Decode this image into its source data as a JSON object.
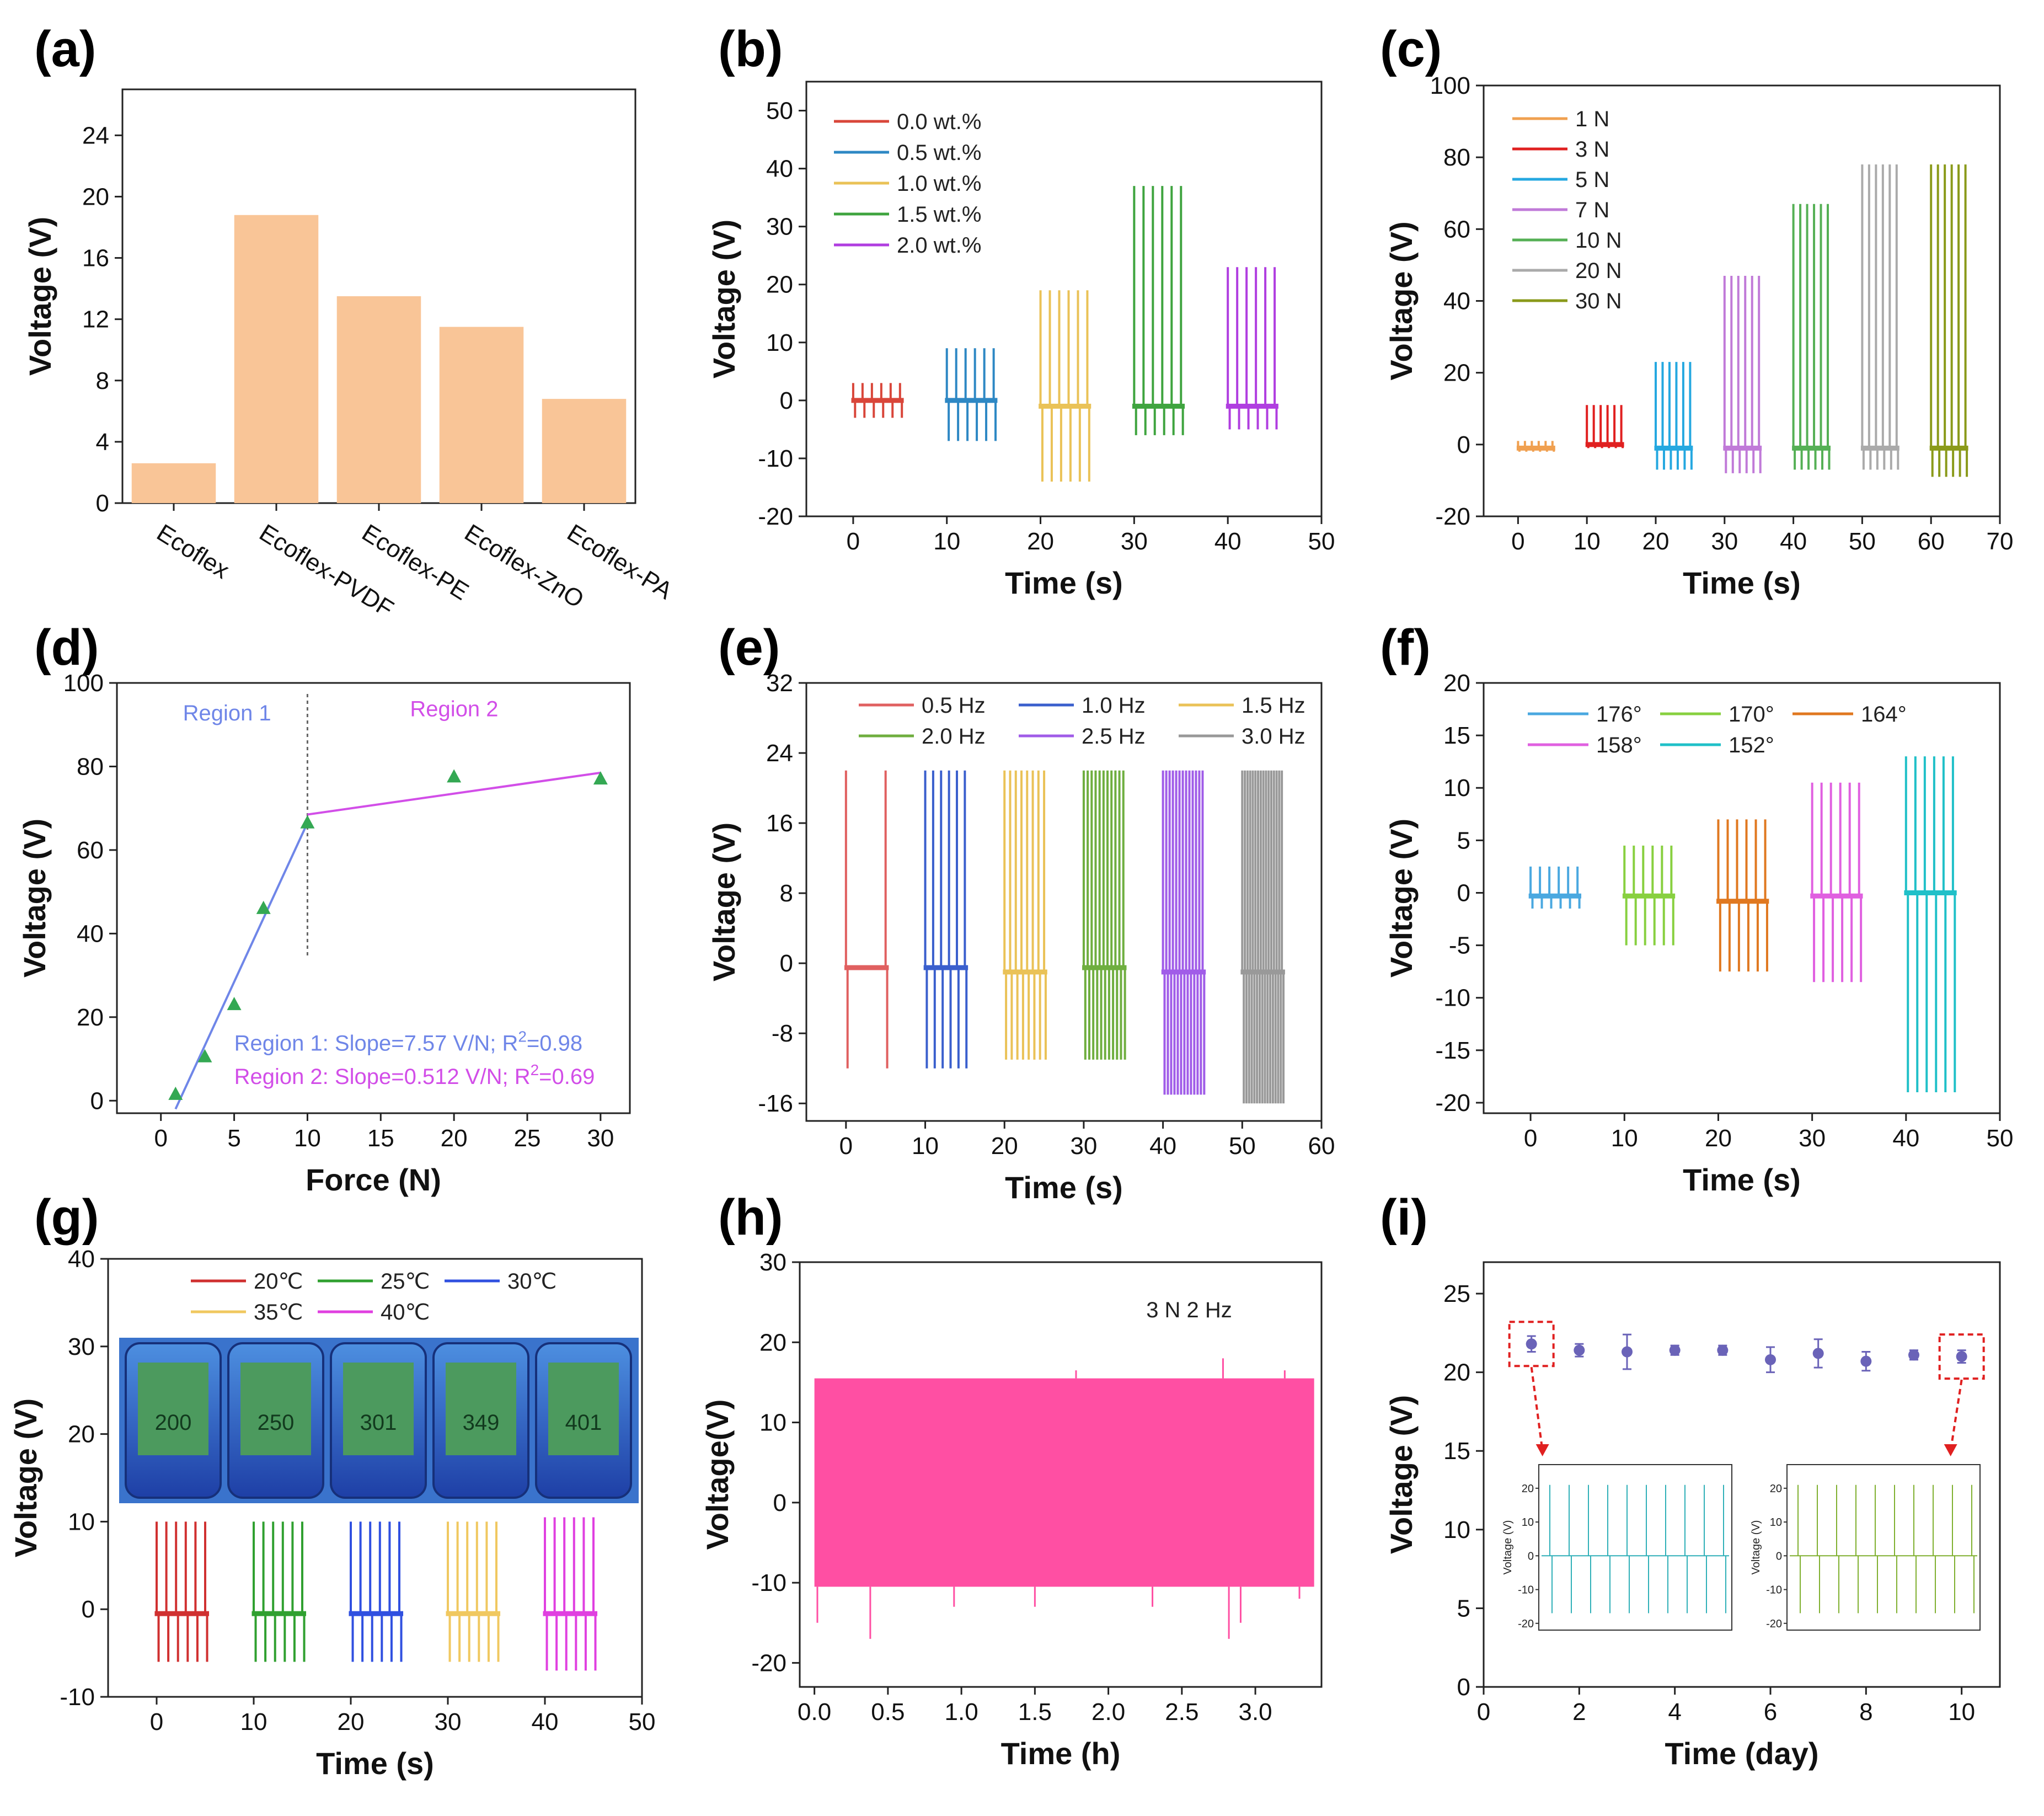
{
  "colors": {
    "bar_fill": "#f9c597",
    "pink_fill": "#ff4fa3",
    "stability_marker": "#6a63b8",
    "callout": "#e02020",
    "region1": "#6f86e8",
    "region2": "#d24ee8",
    "point": "#34a853"
  },
  "chart_data": [
    {
      "panel": "(a)",
      "type": "bar",
      "categories": [
        "Ecoflex",
        "Ecoflex-PVDF",
        "Ecoflex-PE",
        "Ecoflex-ZnO",
        "Ecoflex-PA"
      ],
      "values": [
        2.6,
        18.8,
        13.5,
        11.5,
        6.8
      ],
      "ylabel": "Voltage (V)",
      "xlabel": "",
      "ylim": [
        0,
        27
      ],
      "yticks": [
        0,
        4,
        8,
        12,
        16,
        20,
        24
      ]
    },
    {
      "panel": "(b)",
      "type": "line",
      "xlabel": "Time (s)",
      "ylabel": "Voltage (V)",
      "xlim": [
        -5,
        50
      ],
      "ylim": [
        -20,
        55
      ],
      "xticks": [
        0,
        10,
        20,
        30,
        40,
        50
      ],
      "yticks": [
        -20,
        -10,
        0,
        10,
        20,
        30,
        40,
        50
      ],
      "series": [
        {
          "name": "0.0 wt.%",
          "color": "#d9463a",
          "start": 0,
          "end": 5,
          "pulses": 6,
          "max": 3,
          "min": -3,
          "base": 0
        },
        {
          "name": "0.5 wt.%",
          "color": "#2e88c4",
          "start": 10,
          "end": 15,
          "pulses": 6,
          "max": 9,
          "min": -7,
          "base": 0
        },
        {
          "name": "1.0 wt.%",
          "color": "#eac257",
          "start": 20,
          "end": 25,
          "pulses": 6,
          "max": 19,
          "min": -14,
          "base": -1
        },
        {
          "name": "1.5 wt.%",
          "color": "#3fa43f",
          "start": 30,
          "end": 35,
          "pulses": 6,
          "max": 37,
          "min": -6,
          "base": -1
        },
        {
          "name": "2.0 wt.%",
          "color": "#b03ee0",
          "start": 40,
          "end": 45,
          "pulses": 6,
          "max": 23,
          "min": -5,
          "base": -1
        }
      ]
    },
    {
      "panel": "(c)",
      "type": "line",
      "xlabel": "Time (s)",
      "ylabel": "Voltage (V)",
      "xlim": [
        -5,
        70
      ],
      "ylim": [
        -20,
        100
      ],
      "xticks": [
        0,
        10,
        20,
        30,
        40,
        50,
        60,
        70
      ],
      "yticks": [
        -20,
        0,
        20,
        40,
        60,
        80,
        100
      ],
      "series": [
        {
          "name": "1 N",
          "color": "#f0a050",
          "start": 0,
          "end": 5,
          "pulses": 6,
          "max": 1,
          "min": -2,
          "base": -1
        },
        {
          "name": "3 N",
          "color": "#e02020",
          "start": 10,
          "end": 15,
          "pulses": 6,
          "max": 11,
          "min": -1,
          "base": 0
        },
        {
          "name": "5 N",
          "color": "#25a8e0",
          "start": 20,
          "end": 25,
          "pulses": 6,
          "max": 23,
          "min": -7,
          "base": -1
        },
        {
          "name": "7 N",
          "color": "#c07ad8",
          "start": 30,
          "end": 35,
          "pulses": 6,
          "max": 47,
          "min": -8,
          "base": -1
        },
        {
          "name": "10 N",
          "color": "#55b055",
          "start": 40,
          "end": 45,
          "pulses": 6,
          "max": 67,
          "min": -7,
          "base": -1
        },
        {
          "name": "20 N",
          "color": "#aaaaaa",
          "start": 50,
          "end": 55,
          "pulses": 6,
          "max": 78,
          "min": -7,
          "base": -1
        },
        {
          "name": "30 N",
          "color": "#8a9a1a",
          "start": 60,
          "end": 65,
          "pulses": 6,
          "max": 78,
          "min": -9,
          "base": -1
        }
      ]
    },
    {
      "panel": "(d)",
      "type": "scatter",
      "xlabel": "Force (N)",
      "ylabel": "Voltage (V)",
      "xlim": [
        -3,
        32
      ],
      "ylim": [
        -3,
        100
      ],
      "xticks": [
        0,
        5,
        10,
        15,
        20,
        25,
        30
      ],
      "yticks": [
        0,
        20,
        40,
        60,
        80,
        100
      ],
      "points": [
        [
          1,
          1.5
        ],
        [
          3,
          10.5
        ],
        [
          5,
          23
        ],
        [
          7,
          46
        ],
        [
          10,
          66.5
        ],
        [
          20,
          77.5
        ],
        [
          30,
          77
        ]
      ],
      "region1_label": "Region 1",
      "region2_label": "Region 2",
      "fit1": {
        "x": [
          1,
          10
        ],
        "y": [
          -2,
          66.5
        ],
        "label": "Region 1: Slope=7.57 V/N; R",
        "sup": "2",
        "r2": "=0.98"
      },
      "fit2": {
        "x": [
          10,
          30
        ],
        "y": [
          68.5,
          78.5
        ],
        "label": "Region 2: Slope=0.512 V/N; R",
        "sup": "2",
        "r2": "=0.69"
      },
      "divider_x": 10
    },
    {
      "panel": "(e)",
      "type": "line",
      "xlabel": "Time (s)",
      "ylabel": "Voltage (V)",
      "xlim": [
        -5,
        60
      ],
      "ylim": [
        -18,
        32
      ],
      "xticks": [
        0,
        10,
        20,
        30,
        40,
        50,
        60
      ],
      "yticks": [
        -16,
        -8,
        0,
        8,
        16,
        24,
        32
      ],
      "series": [
        {
          "name": "0.5 Hz",
          "color": "#e06060",
          "start": 0,
          "end": 5,
          "pulses": 2,
          "max": 22,
          "min": -12,
          "base": -0.5
        },
        {
          "name": "1.0 Hz",
          "color": "#3a5fcd",
          "start": 10,
          "end": 15,
          "pulses": 6,
          "max": 22,
          "min": -12,
          "base": -0.5
        },
        {
          "name": "1.5 Hz",
          "color": "#eac257",
          "start": 20,
          "end": 25,
          "pulses": 8,
          "max": 22,
          "min": -11,
          "base": -1
        },
        {
          "name": "2.0 Hz",
          "color": "#6fae3f",
          "start": 30,
          "end": 35,
          "pulses": 11,
          "max": 22,
          "min": -11,
          "base": -0.5
        },
        {
          "name": "2.5 Hz",
          "color": "#a05ce8",
          "start": 40,
          "end": 45,
          "pulses": 13,
          "max": 22,
          "min": -15,
          "base": -1
        },
        {
          "name": "3.0 Hz",
          "color": "#999999",
          "start": 50,
          "end": 55,
          "pulses": 16,
          "max": 22,
          "min": -16,
          "base": -1
        }
      ]
    },
    {
      "panel": "(f)",
      "type": "line",
      "xlabel": "Time (s)",
      "ylabel": "Voltage (V)",
      "xlim": [
        -5,
        50
      ],
      "ylim": [
        -21,
        20
      ],
      "xticks": [
        0,
        10,
        20,
        30,
        40,
        50
      ],
      "yticks": [
        -20,
        -15,
        -10,
        -5,
        0,
        5,
        10,
        15,
        20
      ],
      "series": [
        {
          "name": "176°",
          "color": "#4aa8e0",
          "start": 0,
          "end": 5,
          "pulses": 6,
          "max": 2.5,
          "min": -1.5,
          "base": -0.3
        },
        {
          "name": "170°",
          "color": "#88d040",
          "start": 10,
          "end": 15,
          "pulses": 6,
          "max": 4.5,
          "min": -5,
          "base": -0.3
        },
        {
          "name": "164°",
          "color": "#e07820",
          "start": 20,
          "end": 25,
          "pulses": 6,
          "max": 7,
          "min": -7.5,
          "base": -0.8
        },
        {
          "name": "158°",
          "color": "#e060e0",
          "start": 30,
          "end": 35,
          "pulses": 6,
          "max": 10.5,
          "min": -8.5,
          "base": -0.3
        },
        {
          "name": "152°",
          "color": "#20c0c8",
          "start": 40,
          "end": 45,
          "pulses": 6,
          "max": 13,
          "min": -19,
          "base": 0
        }
      ]
    },
    {
      "panel": "(g)",
      "type": "line",
      "xlabel": "Time (s)",
      "ylabel": "Voltage (V)",
      "xlim": [
        -5,
        50
      ],
      "ylim": [
        -10,
        40
      ],
      "xticks": [
        0,
        10,
        20,
        30,
        40,
        50
      ],
      "yticks": [
        -10,
        0,
        10,
        20,
        30,
        40
      ],
      "series": [
        {
          "name": "20℃",
          "color": "#d03030",
          "start": 0,
          "end": 5,
          "pulses": 6,
          "max": 10,
          "min": -6,
          "base": -0.5
        },
        {
          "name": "25℃",
          "color": "#30a030",
          "start": 10,
          "end": 15,
          "pulses": 6,
          "max": 10,
          "min": -6,
          "base": -0.5
        },
        {
          "name": "30℃",
          "color": "#3050e0",
          "start": 20,
          "end": 25,
          "pulses": 6,
          "max": 10,
          "min": -6,
          "base": -0.5
        },
        {
          "name": "35℃",
          "color": "#f0c860",
          "start": 30,
          "end": 35,
          "pulses": 6,
          "max": 10,
          "min": -6,
          "base": -0.5
        },
        {
          "name": "40℃",
          "color": "#e040e0",
          "start": 40,
          "end": 45,
          "pulses": 6,
          "max": 10.5,
          "min": -7,
          "base": -0.5
        }
      ],
      "display_readings": [
        "200",
        "250",
        "301",
        "349",
        "401"
      ]
    },
    {
      "panel": "(h)",
      "type": "area",
      "xlabel": "Time (h)",
      "ylabel": "Voltage(V)",
      "xlim": [
        -0.1,
        3.45
      ],
      "ylim": [
        -23,
        30
      ],
      "xticks": [
        0.0,
        0.5,
        1.0,
        1.5,
        2.0,
        2.5,
        3.0
      ],
      "yticks": [
        -20,
        -10,
        0,
        10,
        20,
        30
      ],
      "band_upper": 15.5,
      "band_lower": -10.5,
      "band_end": 3.4,
      "annotation": "3 N  2 Hz"
    },
    {
      "panel": "(i)",
      "type": "scatter",
      "xlabel": "Time (day)",
      "ylabel": "Voltage (V)",
      "xlim": [
        0,
        10.8
      ],
      "ylim": [
        0,
        27
      ],
      "xticks": [
        0,
        2,
        4,
        6,
        8,
        10
      ],
      "yticks": [
        0,
        5,
        10,
        15,
        20,
        25
      ],
      "points": [
        [
          1,
          21.8
        ],
        [
          2,
          21.4
        ],
        [
          3,
          21.3
        ],
        [
          4,
          21.4
        ],
        [
          5,
          21.4
        ],
        [
          6,
          20.8
        ],
        [
          7,
          21.2
        ],
        [
          8,
          20.7
        ],
        [
          9,
          21.1
        ],
        [
          10,
          21.0
        ]
      ],
      "errors": [
        0.5,
        0.4,
        1.1,
        0.3,
        0.3,
        0.8,
        0.9,
        0.6,
        0.3,
        0.4
      ],
      "inset": {
        "ylabel": "Voltage (V)",
        "yticks": [
          -20,
          -10,
          0,
          10,
          20
        ]
      }
    }
  ]
}
